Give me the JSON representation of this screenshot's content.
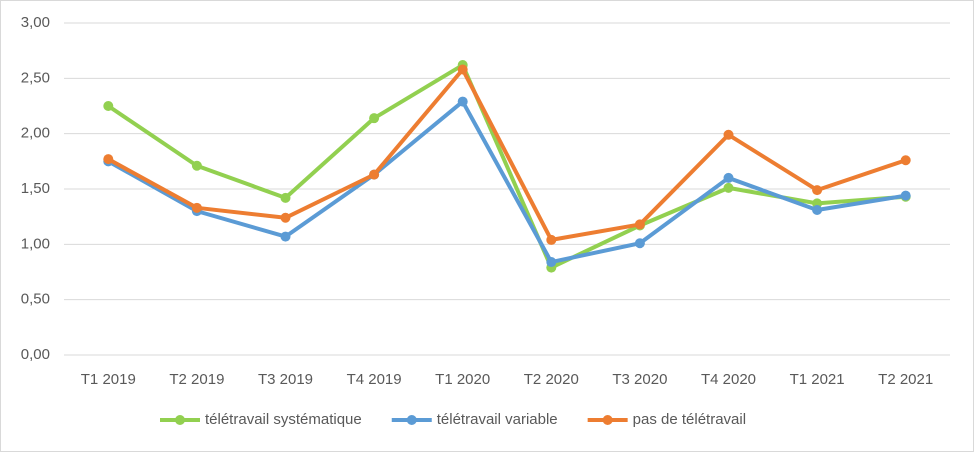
{
  "chart_data": {
    "type": "line",
    "categories": [
      "T1 2019",
      "T2 2019",
      "T3 2019",
      "T4 2019",
      "T1 2020",
      "T2 2020",
      "T3 2020",
      "T4 2020",
      "T1 2021",
      "T2 2021"
    ],
    "series": [
      {
        "name": "télétravail systématique",
        "color": "#92d050",
        "values": [
          2.25,
          1.71,
          1.42,
          2.14,
          2.62,
          0.79,
          1.17,
          1.51,
          1.37,
          1.43
        ]
      },
      {
        "name": "télétravail variable",
        "color": "#5b9bd5",
        "values": [
          1.75,
          1.3,
          1.07,
          1.63,
          2.29,
          0.84,
          1.01,
          1.6,
          1.31,
          1.44
        ]
      },
      {
        "name": "pas de télétravail",
        "color": "#ed7d31",
        "values": [
          1.77,
          1.33,
          1.24,
          1.63,
          2.58,
          1.04,
          1.18,
          1.99,
          1.49,
          1.76
        ]
      }
    ],
    "ylim": [
      0,
      3
    ],
    "yticks": [
      {
        "value": 0,
        "label": "0,00"
      },
      {
        "value": 0.5,
        "label": "0,50"
      },
      {
        "value": 1,
        "label": "1,00"
      },
      {
        "value": 1.5,
        "label": "1,50"
      },
      {
        "value": 2,
        "label": "2,00"
      },
      {
        "value": 2.5,
        "label": "2,50"
      },
      {
        "value": 3,
        "label": "3,00"
      }
    ],
    "grid": true,
    "legend": "bottom"
  }
}
